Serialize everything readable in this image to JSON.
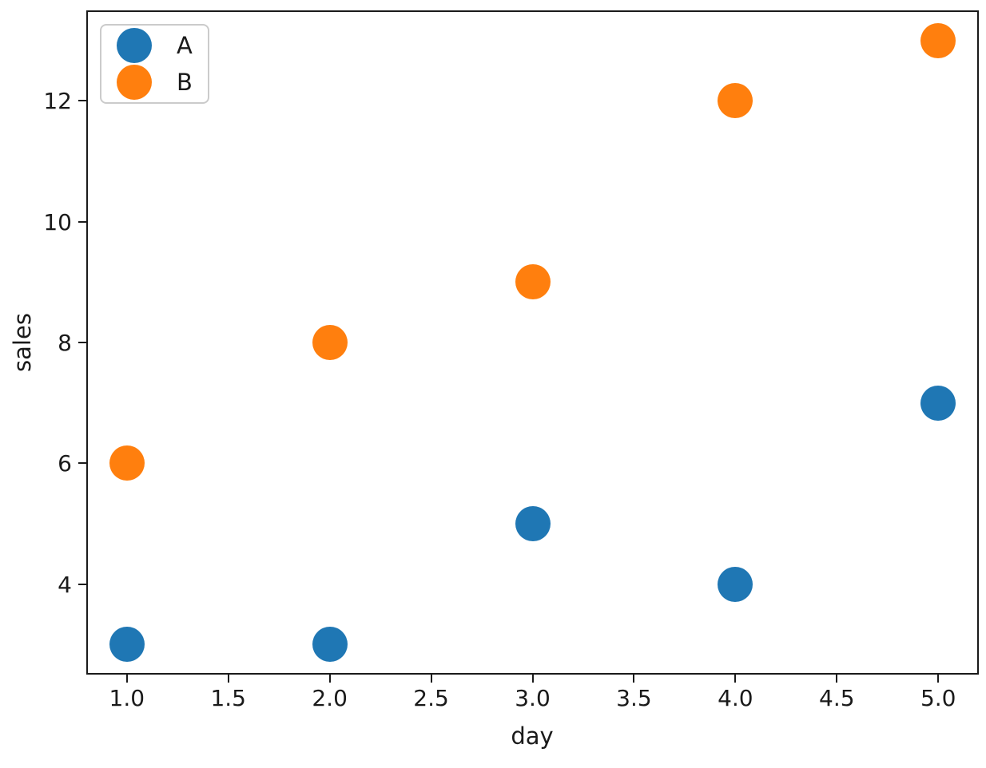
{
  "figure": {
    "background": "#ffffff"
  },
  "chart_data": {
    "type": "scatter",
    "title": "",
    "xlabel": "day",
    "ylabel": "sales",
    "series": [
      {
        "name": "A",
        "color": "#1f77b4",
        "points": [
          {
            "x": 1,
            "y": 3
          },
          {
            "x": 2,
            "y": 3
          },
          {
            "x": 3,
            "y": 5
          },
          {
            "x": 4,
            "y": 4
          },
          {
            "x": 5,
            "y": 7
          }
        ]
      },
      {
        "name": "B",
        "color": "#ff7f0e",
        "points": [
          {
            "x": 1,
            "y": 6
          },
          {
            "x": 2,
            "y": 8
          },
          {
            "x": 3,
            "y": 9
          },
          {
            "x": 4,
            "y": 12
          },
          {
            "x": 5,
            "y": 13
          }
        ]
      }
    ],
    "xlim": [
      0.8,
      5.2
    ],
    "ylim": [
      2.5,
      13.5
    ],
    "x_ticks": [
      {
        "value": 1.0,
        "label": "1.0"
      },
      {
        "value": 1.5,
        "label": "1.5"
      },
      {
        "value": 2.0,
        "label": "2.0"
      },
      {
        "value": 2.5,
        "label": "2.5"
      },
      {
        "value": 3.0,
        "label": "3.0"
      },
      {
        "value": 3.5,
        "label": "3.5"
      },
      {
        "value": 4.0,
        "label": "4.0"
      },
      {
        "value": 4.5,
        "label": "4.5"
      },
      {
        "value": 5.0,
        "label": "5.0"
      }
    ],
    "y_ticks": [
      {
        "value": 4,
        "label": "4"
      },
      {
        "value": 6,
        "label": "6"
      },
      {
        "value": 8,
        "label": "8"
      },
      {
        "value": 10,
        "label": "10"
      },
      {
        "value": 12,
        "label": "12"
      }
    ],
    "grid": false,
    "legend_position": "upper left",
    "marker_diameter_px": 44,
    "spine_color": "#1a1a1a",
    "text_color": "#1a1a1a"
  }
}
